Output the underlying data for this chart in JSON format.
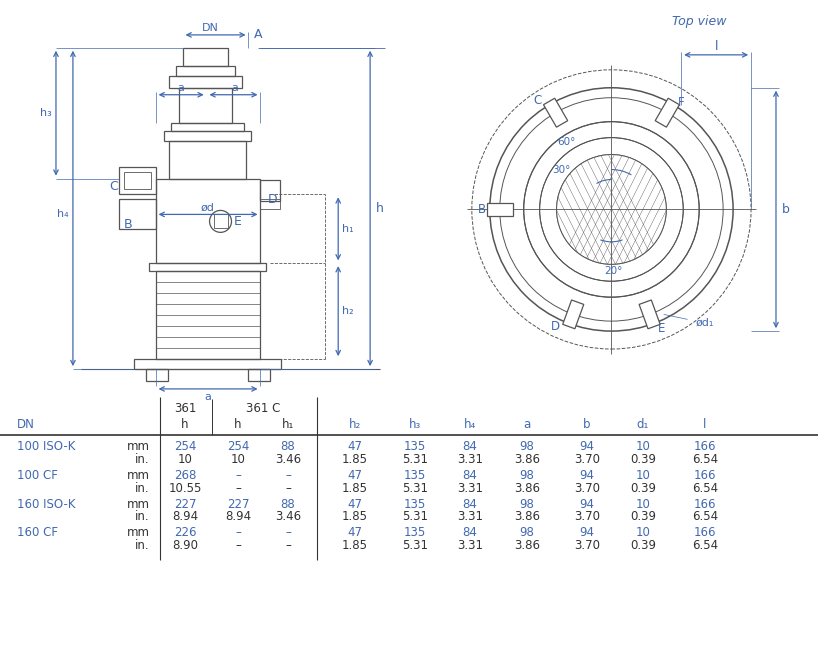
{
  "blue": "#4169B0",
  "gray": "#555555",
  "darkgray": "#333333",
  "table_rows": [
    [
      "100 ISO-K",
      "mm",
      "254",
      "254",
      "88",
      "47",
      "135",
      "84",
      "98",
      "94",
      "10",
      "166"
    ],
    [
      "",
      "in.",
      "10",
      "10",
      "3.46",
      "1.85",
      "5.31",
      "3.31",
      "3.86",
      "3.70",
      "0.39",
      "6.54"
    ],
    [
      "100 CF",
      "mm",
      "268",
      "–",
      "–",
      "47",
      "135",
      "84",
      "98",
      "94",
      "10",
      "166"
    ],
    [
      "",
      "in.",
      "10.55",
      "–",
      "–",
      "1.85",
      "5.31",
      "3.31",
      "3.86",
      "3.70",
      "0.39",
      "6.54"
    ],
    [
      "160 ISO-K",
      "mm",
      "227",
      "227",
      "88",
      "47",
      "135",
      "84",
      "98",
      "94",
      "10",
      "166"
    ],
    [
      "",
      "in.",
      "8.94",
      "8.94",
      "3.46",
      "1.85",
      "5.31",
      "3.31",
      "3.86",
      "3.70",
      "0.39",
      "6.54"
    ],
    [
      "160 CF",
      "mm",
      "226",
      "–",
      "–",
      "47",
      "135",
      "84",
      "98",
      "94",
      "10",
      "166"
    ],
    [
      "",
      "in.",
      "8.90",
      "–",
      "–",
      "1.85",
      "5.31",
      "3.31",
      "3.86",
      "3.70",
      "0.39",
      "6.54"
    ]
  ]
}
